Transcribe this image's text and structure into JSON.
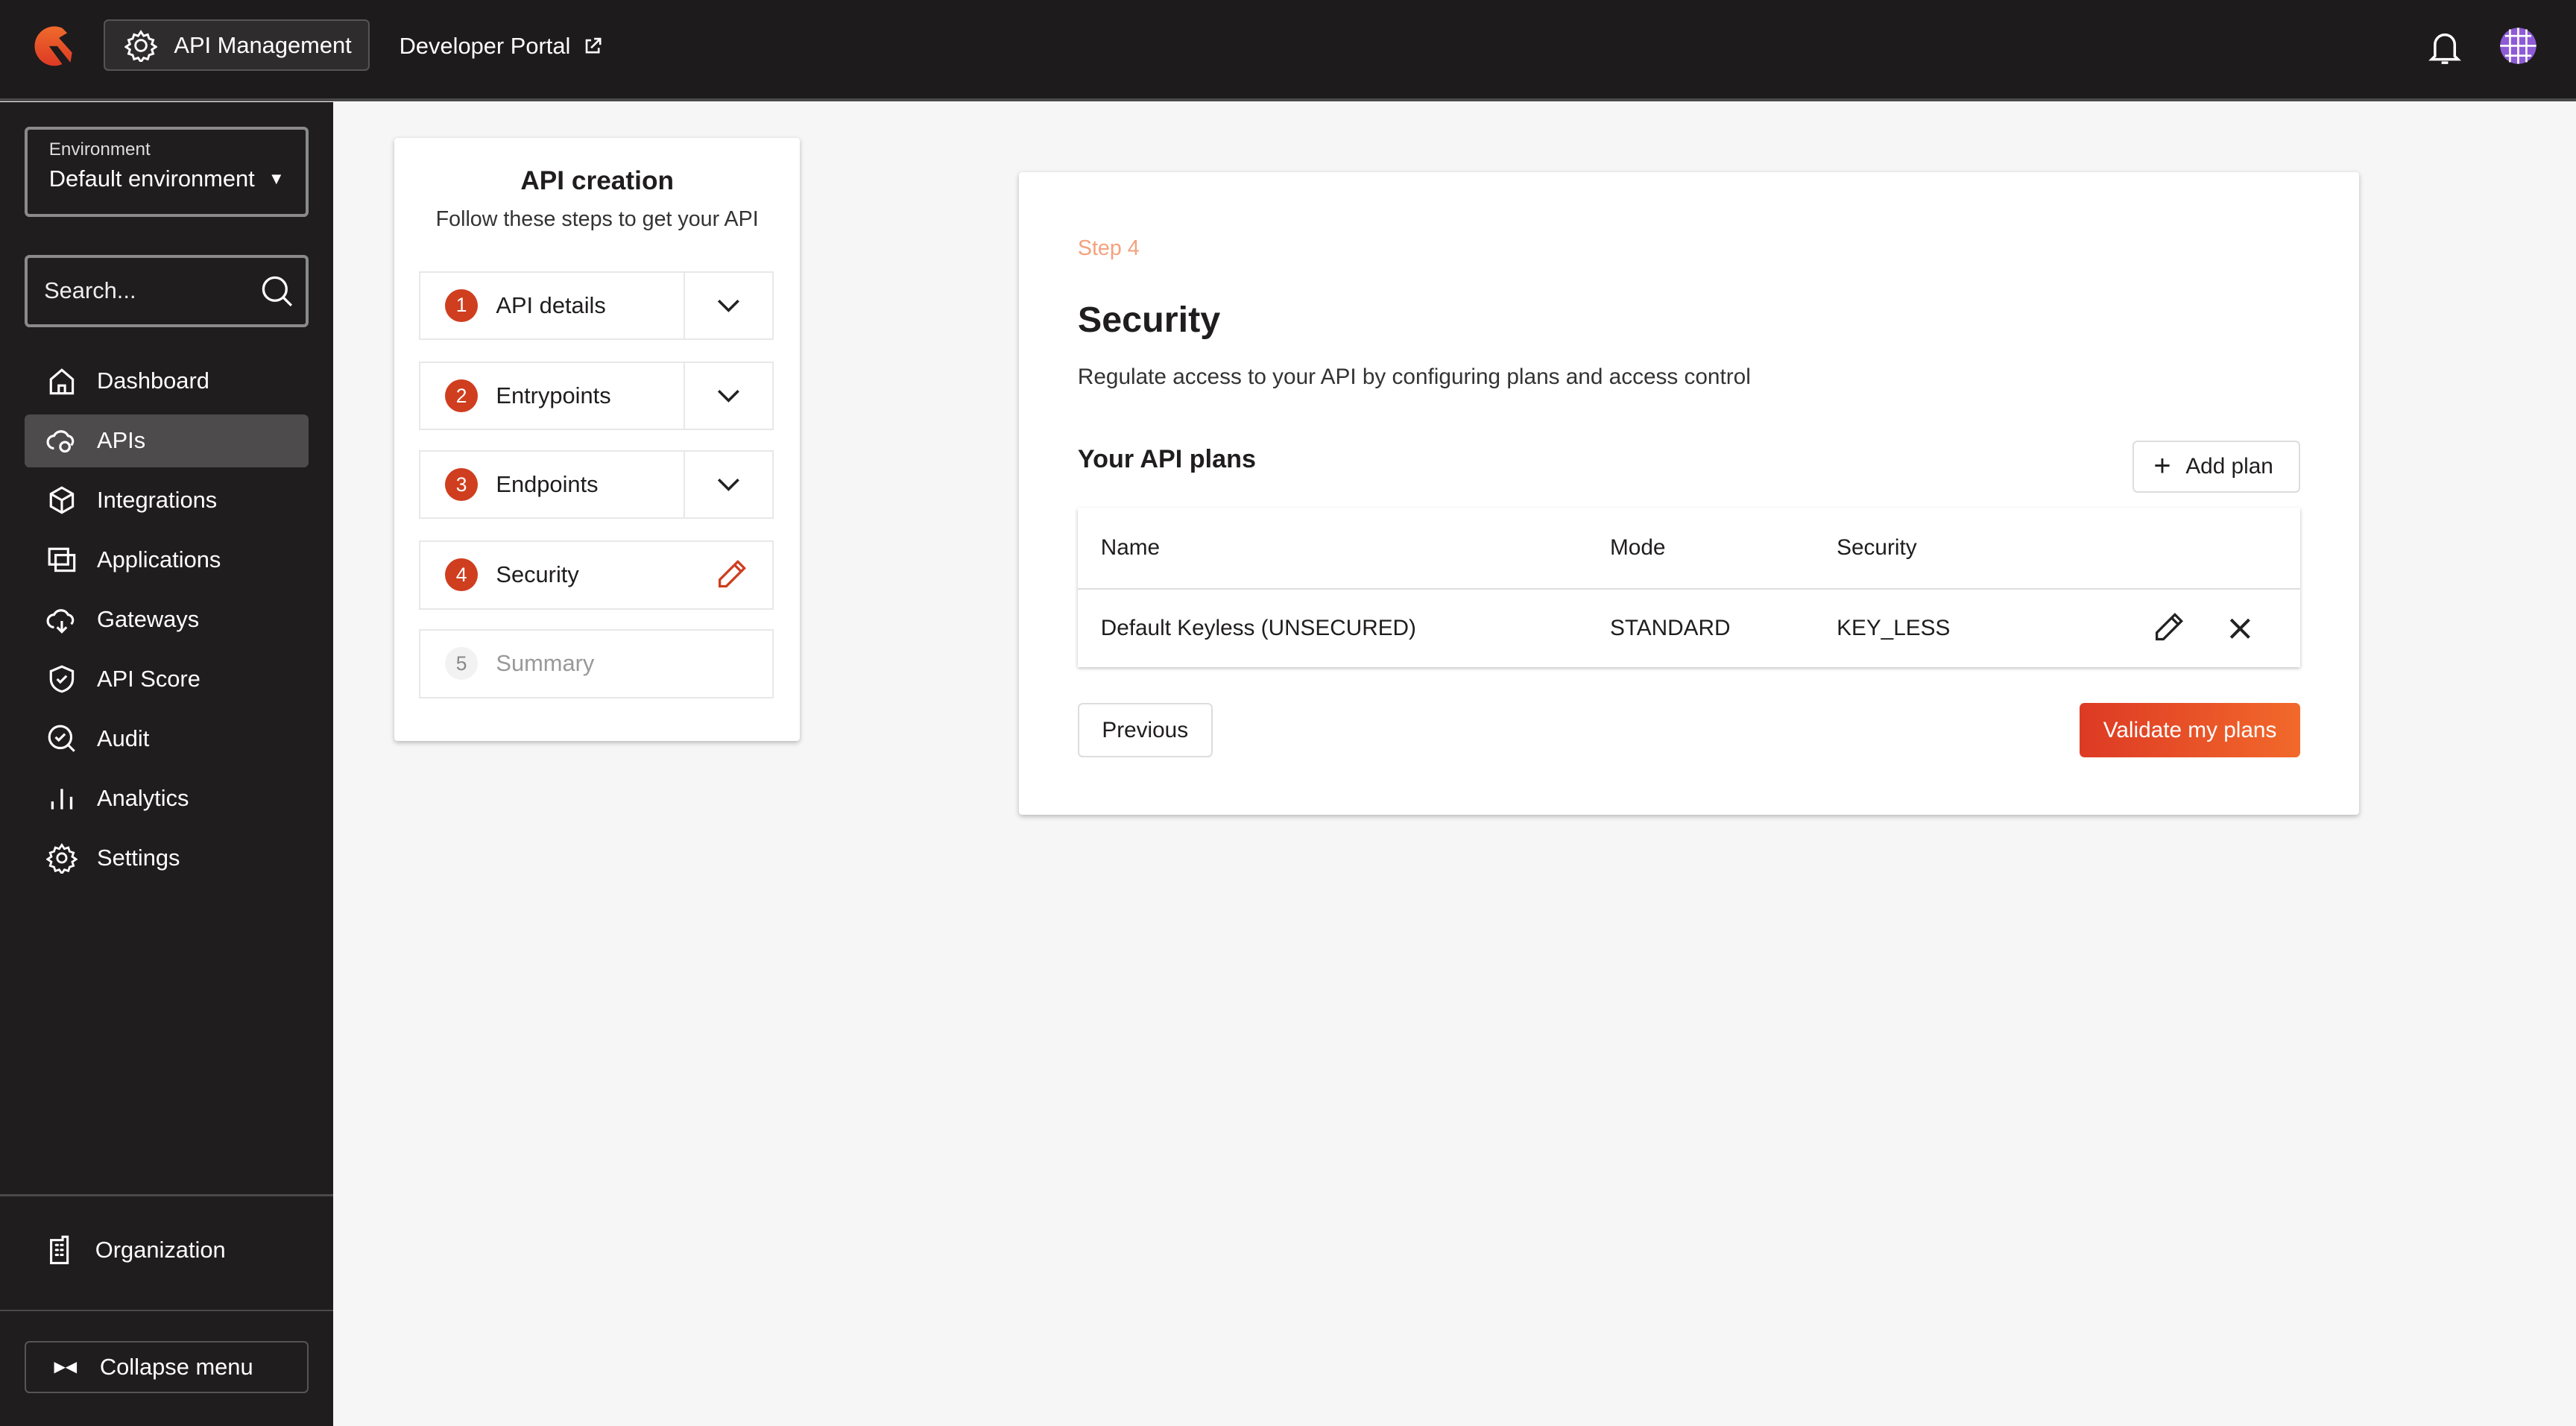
{
  "topbar": {
    "product": "API Management",
    "developer_portal": "Developer Portal",
    "logo": "gravitee-logo",
    "icons": [
      "gear-icon",
      "external-link-icon",
      "bell-icon",
      "globe-avatar-icon"
    ]
  },
  "sidebar": {
    "environment_label": "Environment",
    "environment_value": "Default environment",
    "search_placeholder": "Search...",
    "items": [
      {
        "label": "Dashboard",
        "icon": "home-icon"
      },
      {
        "label": "APIs",
        "icon": "cloud-api-icon",
        "active": true
      },
      {
        "label": "Integrations",
        "icon": "cube-icon"
      },
      {
        "label": "Applications",
        "icon": "applications-icon"
      },
      {
        "label": "Gateways",
        "icon": "gateway-icon"
      },
      {
        "label": "API Score",
        "icon": "shield-check-icon"
      },
      {
        "label": "Audit",
        "icon": "audit-search-icon"
      },
      {
        "label": "Analytics",
        "icon": "bar-chart-icon"
      },
      {
        "label": "Settings",
        "icon": "gear-icon"
      }
    ],
    "organization": "Organization",
    "collapse": "Collapse menu"
  },
  "stepper": {
    "title": "API creation",
    "subtitle": "Follow these steps to get your API",
    "steps": [
      {
        "n": "1",
        "label": "API details"
      },
      {
        "n": "2",
        "label": "Entrypoints"
      },
      {
        "n": "3",
        "label": "Endpoints"
      },
      {
        "n": "4",
        "label": "Security"
      },
      {
        "n": "5",
        "label": "Summary"
      }
    ]
  },
  "main": {
    "step": "Step 4",
    "title": "Security",
    "description": "Regulate access to your API by configuring plans and access control",
    "plans_title": "Your API plans",
    "add_plan": "Add plan",
    "table": {
      "headers": [
        "Name",
        "Mode",
        "Security"
      ],
      "rows": [
        [
          "Default Keyless (UNSECURED)",
          "STANDARD",
          "KEY_LESS"
        ]
      ]
    },
    "previous": "Previous",
    "validate": "Validate my plans"
  },
  "colors": {
    "accent": "#cf3e1f",
    "step_label": "#f3a27d",
    "topbar": "#1d1b1c",
    "sidebar": "#1f1d1e"
  }
}
